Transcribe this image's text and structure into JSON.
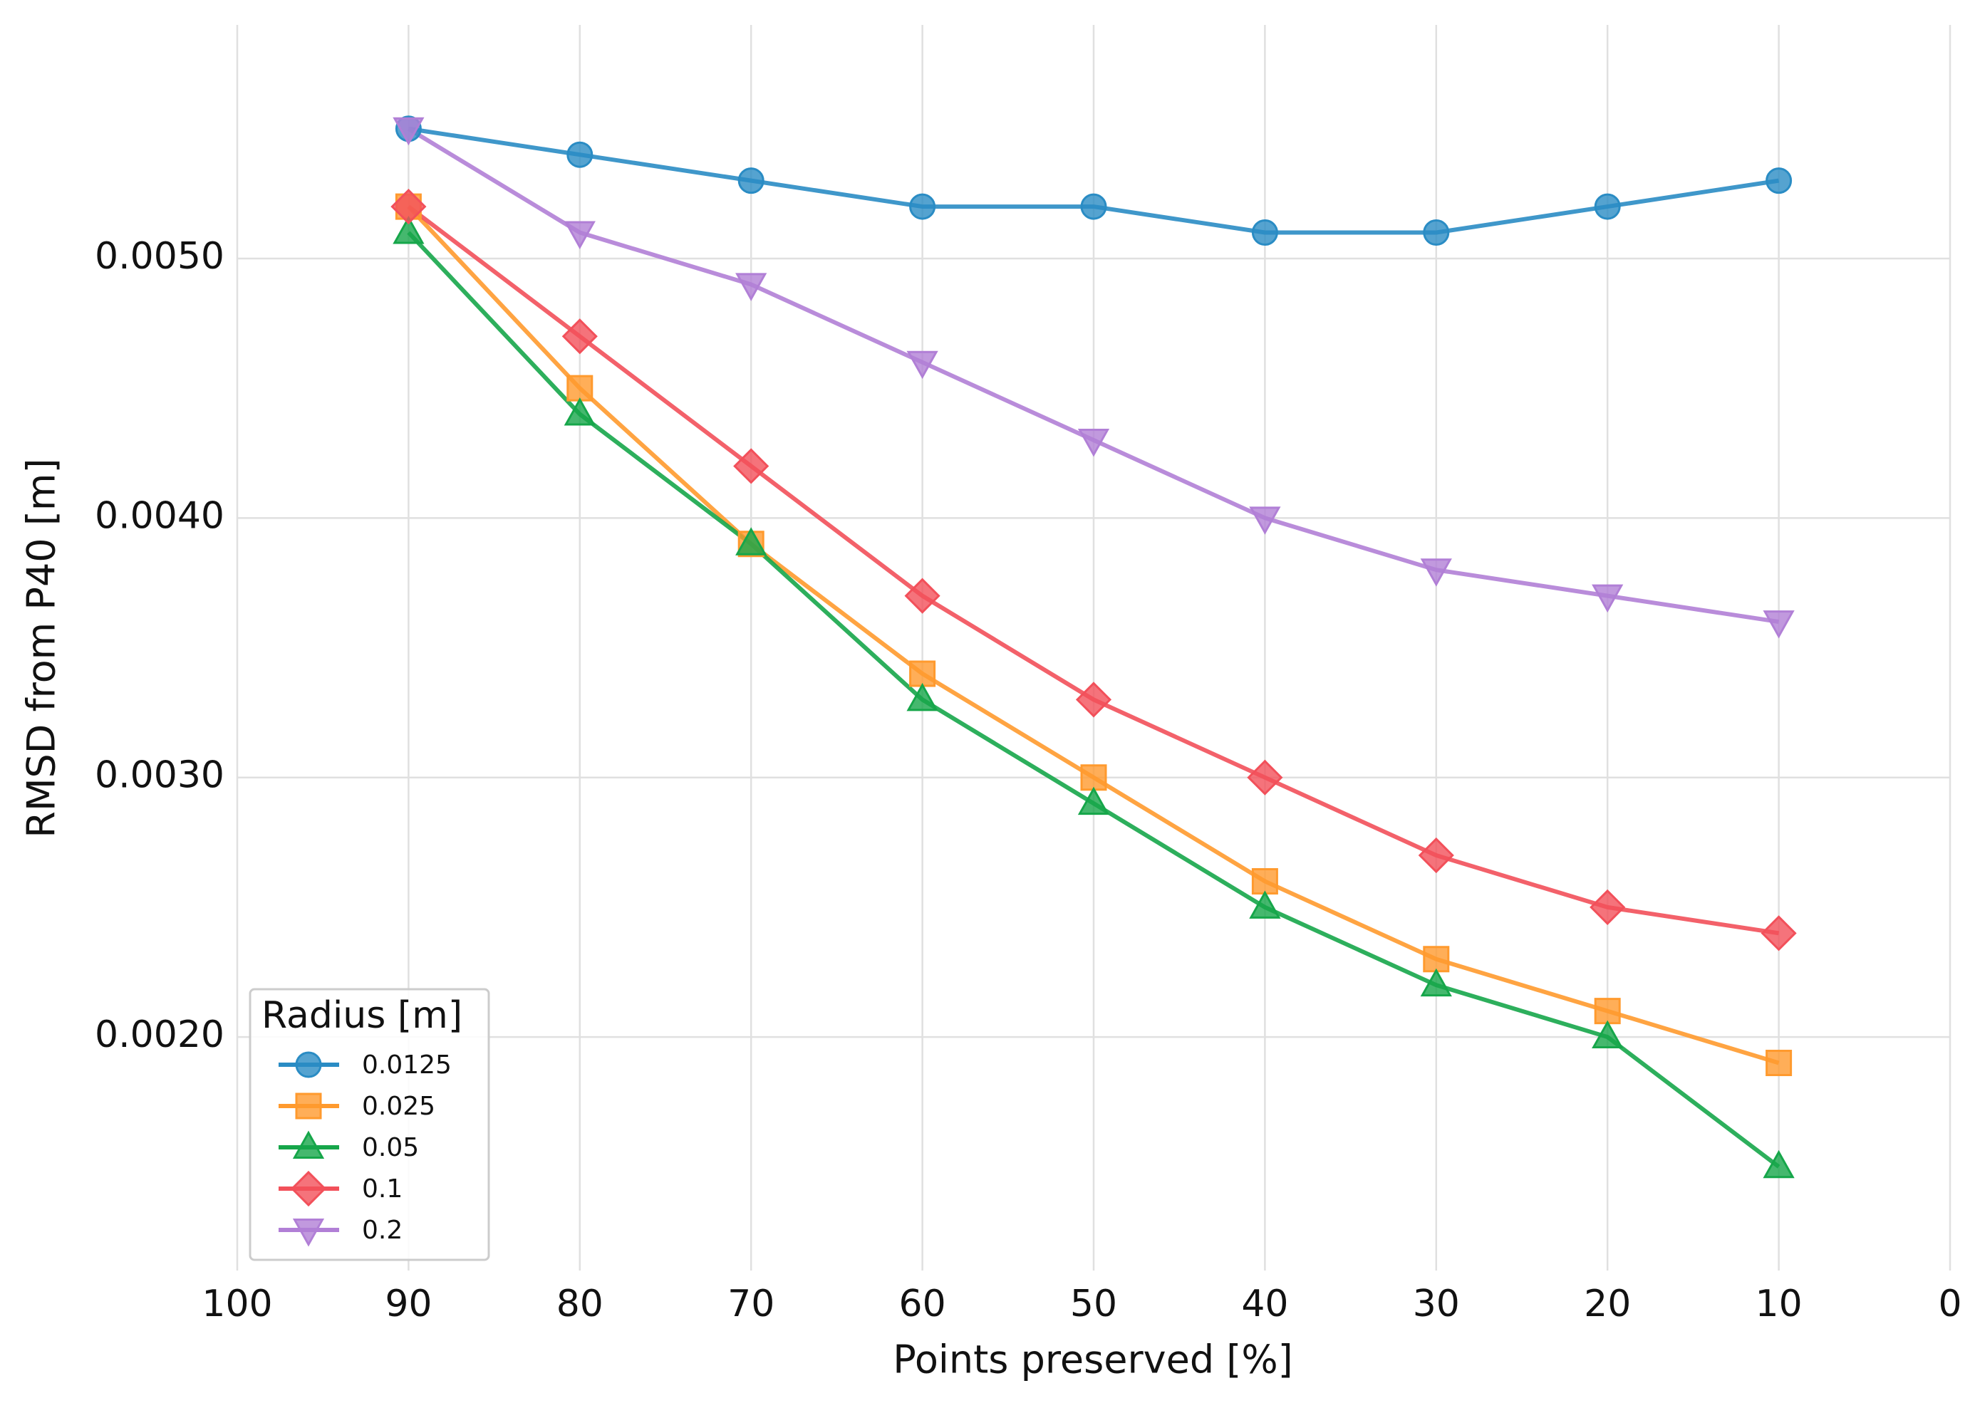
{
  "chart_data": {
    "type": "line",
    "xlabel": "Points preserved [%]",
    "ylabel": "RMSD from P40 [m]",
    "x": [
      90,
      80,
      70,
      60,
      50,
      40,
      30,
      20,
      10
    ],
    "xlim": [
      100,
      0
    ],
    "xticks": [
      100,
      90,
      80,
      70,
      60,
      50,
      40,
      30,
      20,
      10,
      0
    ],
    "ylim": [
      0.0011,
      0.0059
    ],
    "yticks": [
      {
        "value": 0.002,
        "label": "0.0020"
      },
      {
        "value": 0.003,
        "label": "0.0030"
      },
      {
        "value": 0.004,
        "label": "0.0040"
      },
      {
        "value": 0.005,
        "label": "0.0050"
      }
    ],
    "grid": true,
    "legend_title": "Radius [m]",
    "legend_loc": "lower left",
    "series": [
      {
        "name": "0.0125",
        "color": "#2a8cc4",
        "marker": "o",
        "values": [
          0.0055,
          0.0054,
          0.0053,
          0.0052,
          0.0052,
          0.0051,
          0.0051,
          0.0052,
          0.0053
        ]
      },
      {
        "name": "0.025",
        "color": "#ff9a2e",
        "marker": "s",
        "values": [
          0.0052,
          0.0045,
          0.0039,
          0.0034,
          0.003,
          0.0026,
          0.0023,
          0.0021,
          0.0019
        ]
      },
      {
        "name": "0.05",
        "color": "#16a64a",
        "marker": "^",
        "values": [
          0.0051,
          0.0044,
          0.0039,
          0.0033,
          0.0029,
          0.0025,
          0.0022,
          0.002,
          0.0015
        ]
      },
      {
        "name": "0.1",
        "color": "#f2505a",
        "marker": "D",
        "values": [
          0.0052,
          0.0047,
          0.0042,
          0.0037,
          0.0033,
          0.003,
          0.0027,
          0.0025,
          0.0024
        ]
      },
      {
        "name": "0.2",
        "color": "#b17fd6",
        "marker": "v",
        "values": [
          0.0055,
          0.0051,
          0.0049,
          0.0046,
          0.0043,
          0.004,
          0.0038,
          0.0037,
          0.0036
        ]
      }
    ]
  }
}
